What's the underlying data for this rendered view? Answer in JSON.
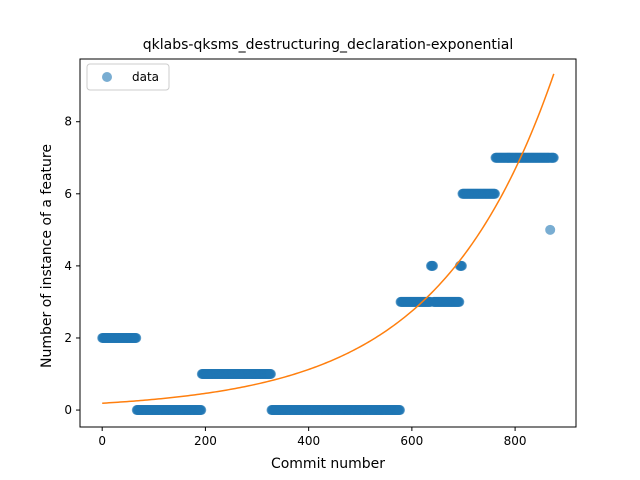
{
  "chart_data": {
    "type": "scatter",
    "title": "qklabs-qksms_destructuring_declaration-exponential",
    "xlabel": "Commit number",
    "ylabel": "Number of instance of a feature",
    "xlim": [
      -43,
      918
    ],
    "ylim": [
      -0.47,
      9.74
    ],
    "xticks": [
      0,
      200,
      400,
      600,
      800
    ],
    "yticks": [
      0,
      2,
      4,
      6,
      8
    ],
    "grid": false,
    "legend": {
      "position": "top-left",
      "entries": [
        "data"
      ]
    },
    "series": [
      {
        "name": "data",
        "kind": "scatter",
        "color": "#1f77b4",
        "segments": [
          {
            "x_start": 0,
            "x_end": 67,
            "y": 2
          },
          {
            "x_start": 67,
            "x_end": 193,
            "y": 0
          },
          {
            "x_start": 193,
            "x_end": 328,
            "y": 1
          },
          {
            "x_start": 328,
            "x_end": 578,
            "y": 0
          },
          {
            "x_start": 578,
            "x_end": 637,
            "y": 3
          },
          {
            "x_start": 637,
            "x_end": 642,
            "y": 4
          },
          {
            "x_start": 642,
            "x_end": 693,
            "y": 3
          },
          {
            "x_start": 693,
            "x_end": 698,
            "y": 4
          },
          {
            "x_start": 698,
            "x_end": 762,
            "y": 6
          },
          {
            "x_start": 762,
            "x_end": 868,
            "y": 7
          },
          {
            "x_start": 868,
            "x_end": 869,
            "y": 5
          },
          {
            "x_start": 869,
            "x_end": 876,
            "y": 7
          }
        ]
      },
      {
        "kind": "line",
        "color": "#ff7f0e",
        "model": "exponential",
        "a": 0.19,
        "b": 0.00445,
        "x_range": [
          0,
          875
        ]
      }
    ]
  }
}
